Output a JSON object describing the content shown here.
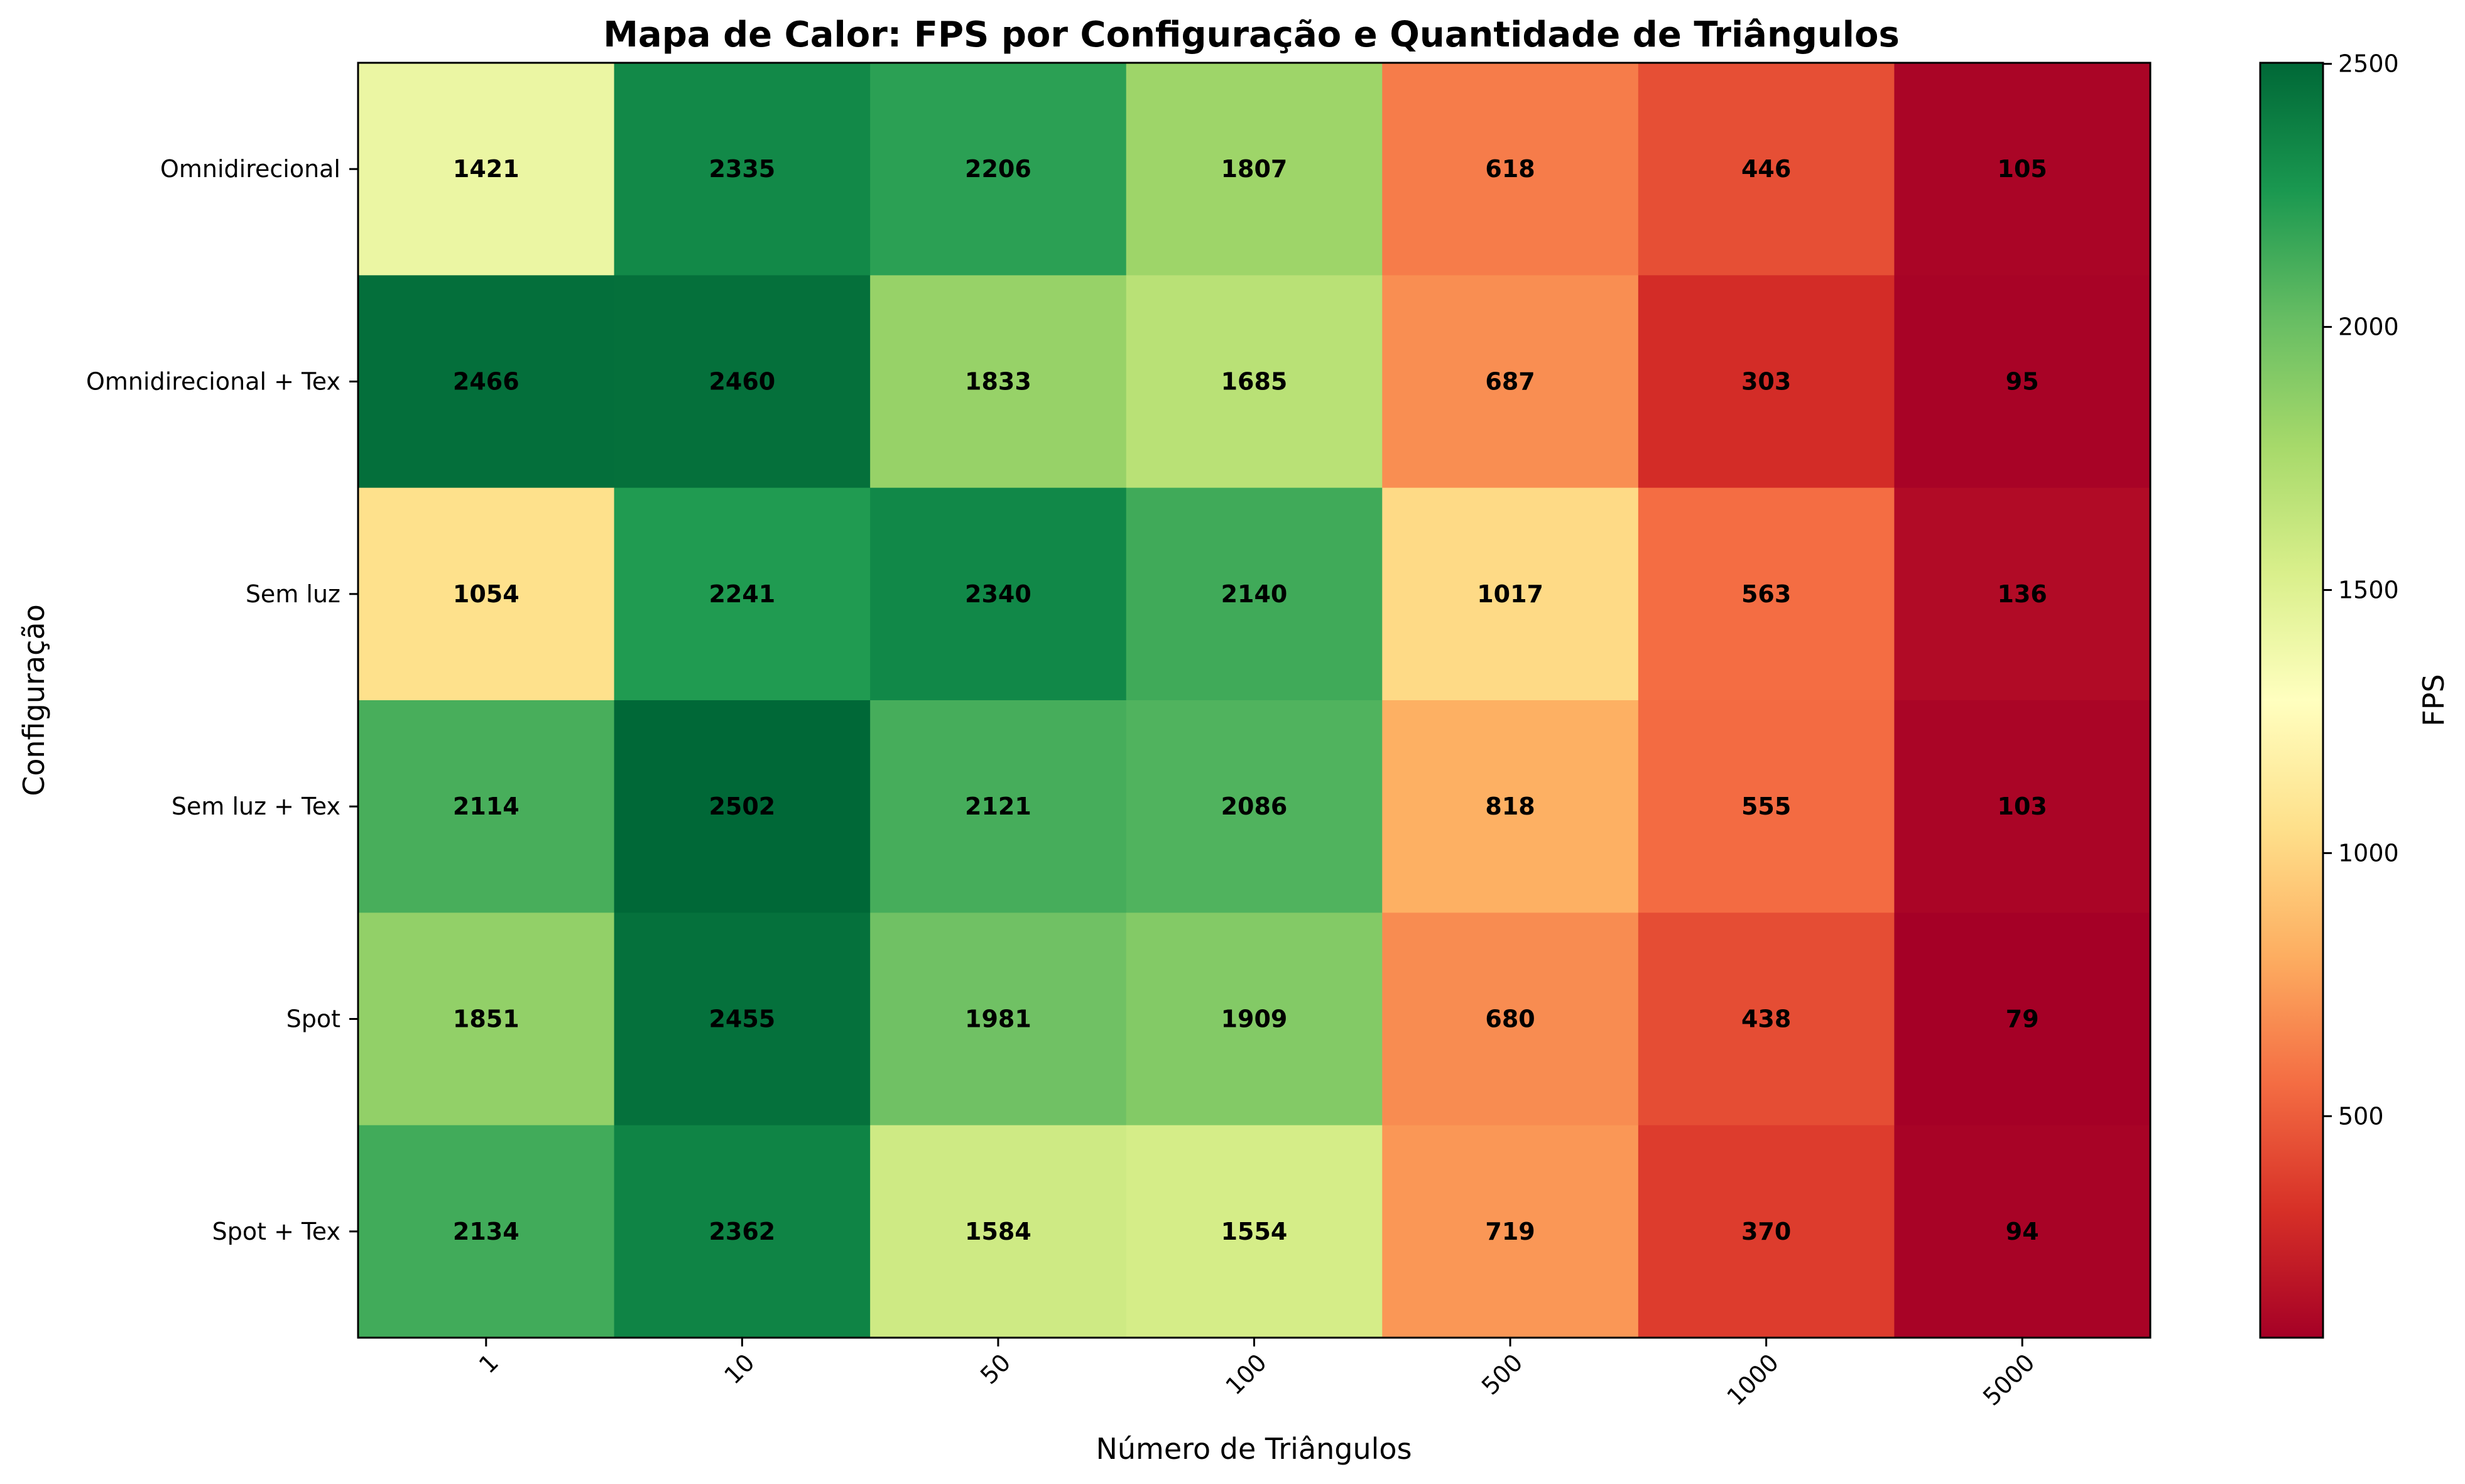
{
  "chart_data": {
    "type": "heatmap",
    "title": "Mapa de Calor: FPS por Configuração e Quantidade de Triângulos",
    "xlabel": "Número de Triângulos",
    "ylabel": "Configuração",
    "x_categories": [
      "1",
      "10",
      "50",
      "100",
      "500",
      "1000",
      "5000"
    ],
    "y_categories": [
      "Omnidirecional",
      "Omnidirecional + Tex",
      "Sem luz",
      "Sem luz + Tex",
      "Spot",
      "Spot + Tex"
    ],
    "values": [
      [
        1421,
        2335,
        2206,
        1807,
        618,
        446,
        105
      ],
      [
        2466,
        2460,
        1833,
        1685,
        687,
        303,
        95
      ],
      [
        1054,
        2241,
        2340,
        2140,
        1017,
        563,
        136
      ],
      [
        2114,
        2502,
        2121,
        2086,
        818,
        555,
        103
      ],
      [
        1851,
        2455,
        1981,
        1909,
        680,
        438,
        79
      ],
      [
        2134,
        2362,
        1584,
        1554,
        719,
        370,
        94
      ]
    ],
    "colorbar": {
      "label": "FPS",
      "colormap": "RdYlGn",
      "range": [
        79,
        2502
      ],
      "ticks": [
        500,
        1000,
        1500,
        2000,
        2500
      ]
    },
    "x_tick_rotation_deg": 45,
    "grid": false,
    "legend": "none"
  }
}
